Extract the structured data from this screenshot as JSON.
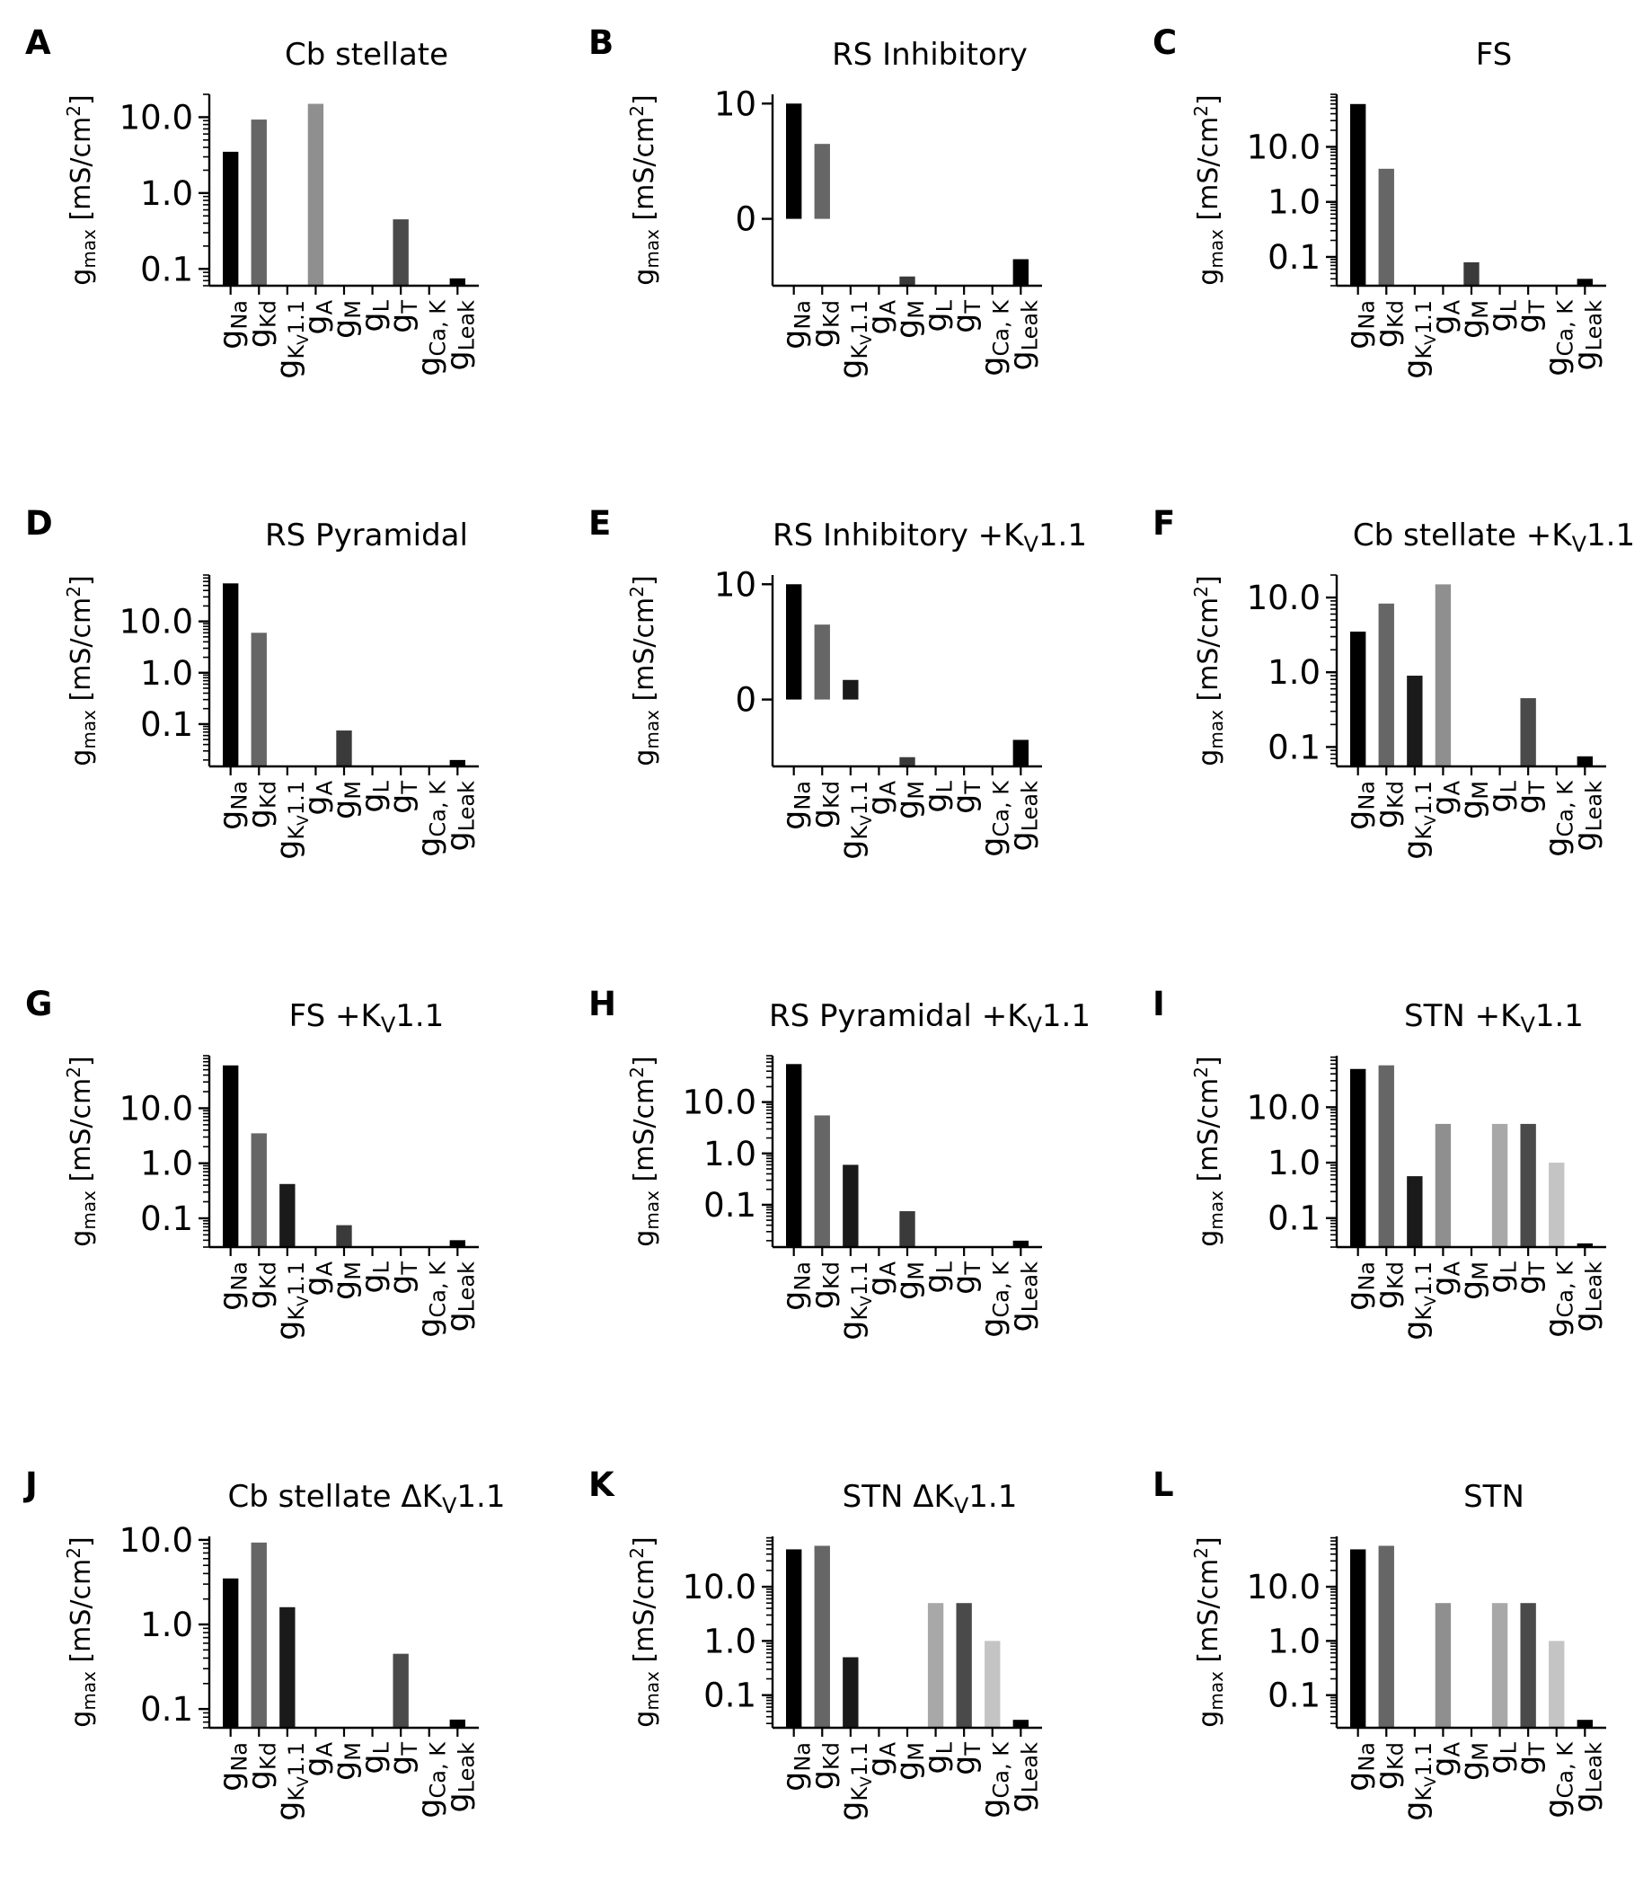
{
  "chart_data": [
    {
      "type": "bar",
      "panel": "A",
      "title": "Cb stellate",
      "categories": [
        "Na",
        "Kd",
        "KV1.1",
        "A",
        "M",
        "L",
        "T",
        "Ca,K",
        "Leak"
      ],
      "values": [
        3.5,
        9.3,
        null,
        15.0,
        null,
        null,
        0.45,
        null,
        0.075
      ],
      "yscale": "log",
      "ylim": [
        0.06,
        20
      ],
      "yticks": [
        0.1,
        1.0,
        10.0
      ],
      "ytick_labels": [
        "0.1",
        "1.0",
        "10.0"
      ],
      "ylabel": "g_max [mS/cm^2]"
    },
    {
      "type": "bar",
      "panel": "B",
      "title": "RS Inhibitory",
      "categories": [
        "Na",
        "Kd",
        "KV1.1",
        "A",
        "M",
        "L",
        "T",
        "Ca,K",
        "Leak"
      ],
      "values": [
        10,
        6.5,
        null,
        null,
        -5.0,
        null,
        null,
        null,
        -3.5
      ],
      "yscale": "linear",
      "ylim": [
        -5.8,
        10.8
      ],
      "yticks": [
        0,
        10
      ],
      "ytick_labels": [
        "0",
        "10"
      ],
      "ylabel": "g_max [mS/cm^2]"
    },
    {
      "type": "bar",
      "panel": "C",
      "title": "FS",
      "categories": [
        "Na",
        "Kd",
        "KV1.1",
        "A",
        "M",
        "L",
        "T",
        "Ca,K",
        "Leak"
      ],
      "values": [
        60,
        4.0,
        null,
        null,
        0.08,
        null,
        null,
        null,
        0.04
      ],
      "yscale": "log",
      "ylim": [
        0.03,
        90
      ],
      "yticks": [
        0.1,
        1.0,
        10.0
      ],
      "ytick_labels": [
        "0.1",
        "1.0",
        "10.0"
      ],
      "ylabel": "g_max [mS/cm^2]"
    },
    {
      "type": "bar",
      "panel": "D",
      "title": "RS Pyramidal",
      "categories": [
        "Na",
        "Kd",
        "KV1.1",
        "A",
        "M",
        "L",
        "T",
        "Ca,K",
        "Leak"
      ],
      "values": [
        55,
        6.0,
        null,
        null,
        0.075,
        null,
        null,
        null,
        0.02
      ],
      "yscale": "log",
      "ylim": [
        0.015,
        80
      ],
      "yticks": [
        0.1,
        1.0,
        10.0
      ],
      "ytick_labels": [
        "0.1",
        "1.0",
        "10.0"
      ],
      "ylabel": "g_max [mS/cm^2]"
    },
    {
      "type": "bar",
      "panel": "E",
      "title": "RS Inhibitory +KV1.1",
      "categories": [
        "Na",
        "Kd",
        "KV1.1",
        "A",
        "M",
        "L",
        "T",
        "Ca,K",
        "Leak"
      ],
      "values": [
        10,
        6.5,
        1.7,
        null,
        -5.0,
        null,
        null,
        null,
        -3.5
      ],
      "yscale": "linear",
      "ylim": [
        -5.8,
        10.8
      ],
      "yticks": [
        0,
        10
      ],
      "ytick_labels": [
        "0",
        "10"
      ],
      "ylabel": "g_max [mS/cm^2]"
    },
    {
      "type": "bar",
      "panel": "F",
      "title": "Cb stellate +KV1.1",
      "categories": [
        "Na",
        "Kd",
        "KV1.1",
        "A",
        "M",
        "L",
        "T",
        "Ca,K",
        "Leak"
      ],
      "values": [
        3.5,
        8.3,
        0.9,
        15.0,
        null,
        null,
        0.45,
        null,
        0.075
      ],
      "yscale": "log",
      "ylim": [
        0.055,
        20
      ],
      "yticks": [
        0.1,
        1.0,
        10.0
      ],
      "ytick_labels": [
        "0.1",
        "1.0",
        "10.0"
      ],
      "ylabel": "g_max [mS/cm^2]"
    },
    {
      "type": "bar",
      "panel": "G",
      "title": "FS +KV1.1",
      "categories": [
        "Na",
        "Kd",
        "KV1.1",
        "A",
        "M",
        "L",
        "T",
        "Ca,K",
        "Leak"
      ],
      "values": [
        60,
        3.5,
        0.42,
        null,
        0.075,
        null,
        null,
        null,
        0.04
      ],
      "yscale": "log",
      "ylim": [
        0.03,
        90
      ],
      "yticks": [
        0.1,
        1.0,
        10.0
      ],
      "ytick_labels": [
        "0.1",
        "1.0",
        "10.0"
      ],
      "ylabel": "g_max [mS/cm^2]"
    },
    {
      "type": "bar",
      "panel": "H",
      "title": "RS Pyramidal +KV1.1",
      "categories": [
        "Na",
        "Kd",
        "KV1.1",
        "A",
        "M",
        "L",
        "T",
        "Ca,K",
        "Leak"
      ],
      "values": [
        55,
        5.5,
        0.6,
        null,
        0.075,
        null,
        null,
        null,
        0.02
      ],
      "yscale": "log",
      "ylim": [
        0.015,
        80
      ],
      "yticks": [
        0.1,
        1.0,
        10.0
      ],
      "ytick_labels": [
        "0.1",
        "1.0",
        "10.0"
      ],
      "ylabel": "g_max [mS/cm^2]"
    },
    {
      "type": "bar",
      "panel": "I",
      "title": "STN +KV1.1",
      "categories": [
        "Na",
        "Kd",
        "KV1.1",
        "A",
        "M",
        "L",
        "T",
        "Ca,K",
        "Leak"
      ],
      "values": [
        49,
        57,
        0.57,
        5.0,
        null,
        5.0,
        5.0,
        1.0,
        0.035
      ],
      "yscale": "log",
      "ylim": [
        0.03,
        85
      ],
      "yticks": [
        0.1,
        1.0,
        10.0
      ],
      "ytick_labels": [
        "0.1",
        "1.0",
        "10.0"
      ],
      "ylabel": "g_max [mS/cm^2]"
    },
    {
      "type": "bar",
      "panel": "J",
      "title": "Cb stellate ΔKV1.1",
      "categories": [
        "Na",
        "Kd",
        "KV1.1",
        "A",
        "M",
        "L",
        "T",
        "Ca,K",
        "Leak"
      ],
      "values": [
        3.5,
        9.3,
        1.6,
        null,
        null,
        null,
        0.45,
        null,
        0.075
      ],
      "yscale": "log",
      "ylim": [
        0.06,
        11
      ],
      "yticks": [
        0.1,
        1.0,
        10.0
      ],
      "ytick_labels": [
        "0.1",
        "1.0",
        "10.0"
      ],
      "ylabel": "g_max [mS/cm^2]"
    },
    {
      "type": "bar",
      "panel": "K",
      "title": "STN ΔKV1.1",
      "categories": [
        "Na",
        "Kd",
        "KV1.1",
        "A",
        "M",
        "L",
        "T",
        "Ca,K",
        "Leak"
      ],
      "values": [
        49,
        57,
        0.5,
        null,
        null,
        5.0,
        5.0,
        1.0,
        0.035
      ],
      "yscale": "log",
      "ylim": [
        0.025,
        85
      ],
      "yticks": [
        0.1,
        1.0,
        10.0
      ],
      "ytick_labels": [
        "0.1",
        "1.0",
        "10.0"
      ],
      "ylabel": "g_max [mS/cm^2]"
    },
    {
      "type": "bar",
      "panel": "L",
      "title": "STN",
      "categories": [
        "Na",
        "Kd",
        "KV1.1",
        "A",
        "M",
        "L",
        "T",
        "Ca,K",
        "Leak"
      ],
      "values": [
        49,
        57,
        null,
        5.0,
        null,
        5.0,
        5.0,
        1.0,
        0.035
      ],
      "yscale": "log",
      "ylim": [
        0.025,
        85
      ],
      "yticks": [
        0.1,
        1.0,
        10.0
      ],
      "ytick_labels": [
        "0.1",
        "1.0",
        "10.0"
      ],
      "ylabel": "g_max [mS/cm^2]"
    }
  ],
  "bar_colors": [
    "#000000",
    "#666666",
    "#1a1a1a",
    "#8f8f8f",
    "#3a3a3a",
    "#a8a8a8",
    "#4a4a4a",
    "#c4c4c4",
    "#000000"
  ]
}
